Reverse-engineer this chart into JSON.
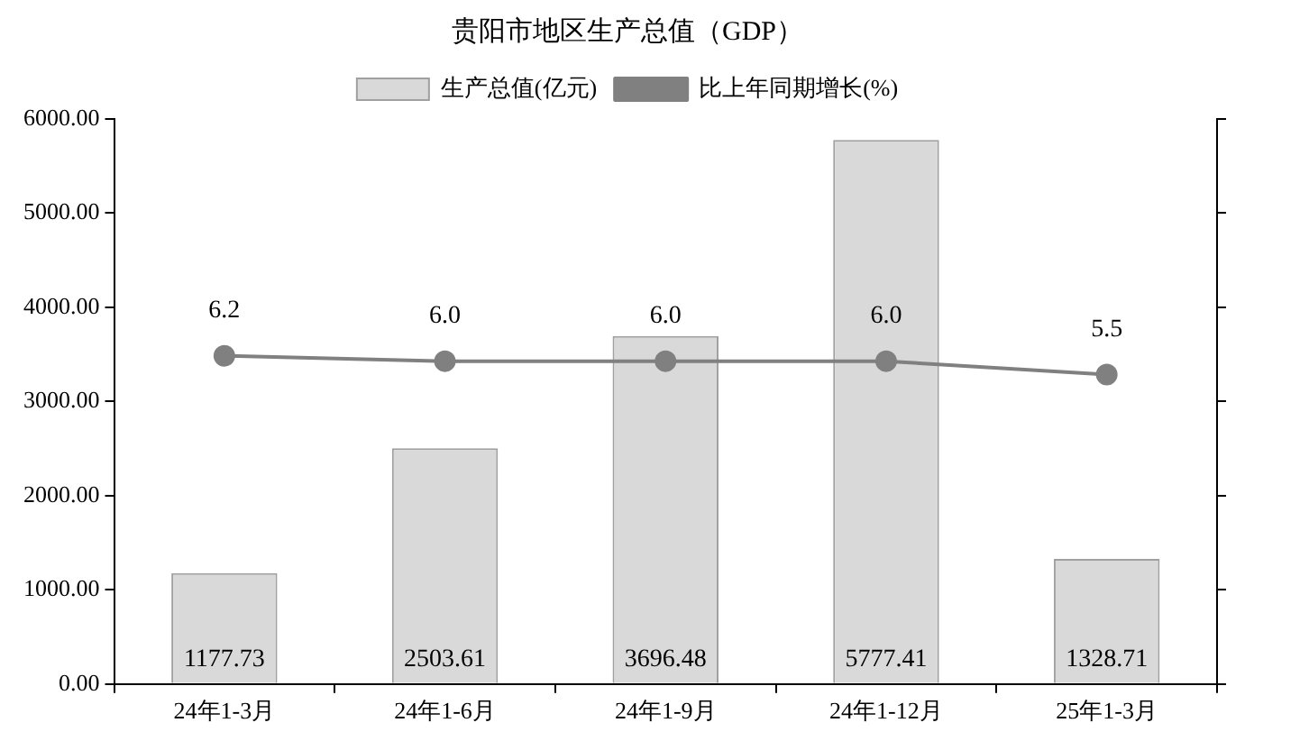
{
  "chart_data": {
    "type": "bar",
    "title": "贵阳市地区生产总值（GDP）",
    "categories": [
      "24年1-3月",
      "24年1-6月",
      "24年1-9月",
      "24年1-12月",
      "25年1-3月"
    ],
    "series": [
      {
        "name": "生产总值(亿元)",
        "color": "#d9d9d9",
        "values": [
          1177.73,
          2503.61,
          3696.48,
          5777.41,
          1328.71
        ],
        "value_labels": [
          "1177.73",
          "2503.61",
          "3696.48",
          "5777.41",
          "1328.71"
        ]
      },
      {
        "name": "比上年同期增长(%)",
        "type": "line",
        "axis": "y2",
        "color": "#808080",
        "values": [
          6.2,
          6.0,
          6.0,
          6.0,
          5.5
        ],
        "value_labels": [
          "6.2",
          "6.0",
          "6.0",
          "6.0",
          "5.5"
        ]
      }
    ],
    "ylim": [
      0,
      6000
    ],
    "yticks": [
      {
        "value": 0,
        "label": "0.00"
      },
      {
        "value": 1000,
        "label": "1000.00"
      },
      {
        "value": 2000,
        "label": "2000.00"
      },
      {
        "value": 3000,
        "label": "3000.00"
      },
      {
        "value": 4000,
        "label": "4000.00"
      },
      {
        "value": 5000,
        "label": "5000.00"
      },
      {
        "value": 6000,
        "label": "6000.00"
      }
    ],
    "y2lim": [
      -6,
      15
    ],
    "y2ticks": [
      {
        "value": -6,
        "label": null
      },
      {
        "value": -2.5,
        "label": null
      },
      {
        "value": 1,
        "label": null
      },
      {
        "value": 4.5,
        "label": null
      },
      {
        "value": 8,
        "label": null
      },
      {
        "value": 11.5,
        "label": null
      },
      {
        "value": 15,
        "label": null
      }
    ],
    "grid": false,
    "legend": "top",
    "marker": "circle",
    "line_style": "solid"
  }
}
